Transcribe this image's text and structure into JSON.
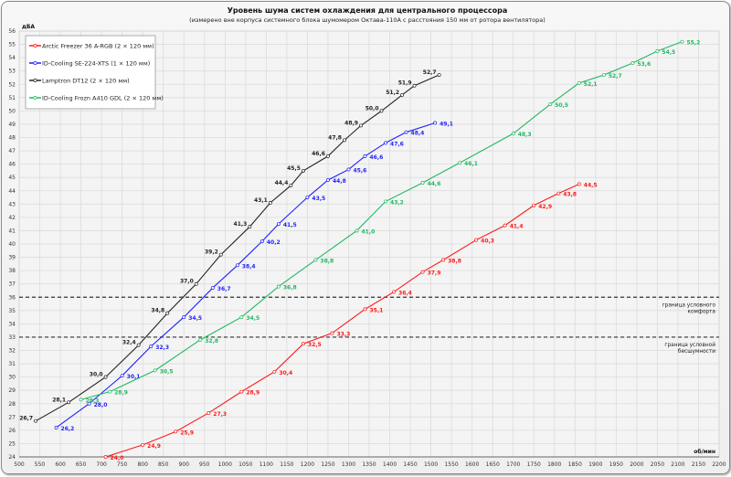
{
  "chart_data": {
    "type": "line",
    "title": "Уровень шума систем охлаждения для центрального процессора",
    "subtitle": "(измерено вне корпуса системного блока шумомером Октава-110А с расстояния 150 мм от ротора вентилятора)",
    "xlabel": "об/мин",
    "ylabel": "дБА",
    "xlim": [
      500,
      2200
    ],
    "ylim": [
      24,
      56
    ],
    "xticks": [
      500,
      550,
      600,
      650,
      700,
      750,
      800,
      850,
      900,
      950,
      1000,
      1050,
      1100,
      1150,
      1200,
      1250,
      1300,
      1350,
      1400,
      1450,
      1500,
      1550,
      1600,
      1650,
      1700,
      1750,
      1800,
      1850,
      1900,
      1950,
      2000,
      2050,
      2100,
      2150,
      2200
    ],
    "yticks": [
      24,
      25,
      26,
      27,
      28,
      29,
      30,
      31,
      32,
      33,
      34,
      35,
      36,
      37,
      38,
      39,
      40,
      41,
      42,
      43,
      44,
      45,
      46,
      47,
      48,
      49,
      50,
      51,
      52,
      53,
      54,
      55,
      56
    ],
    "grid": true,
    "legend": "top-left",
    "reference_lines": [
      {
        "y": 36,
        "label_line1": "граница  условного",
        "label_line2": "комфорта"
      },
      {
        "y": 33,
        "label_line1": "граница  условной",
        "label_line2": "бесшумности"
      }
    ],
    "series": [
      {
        "name": "Arctic Freezer 36 A-RGB (2 × 120 мм)",
        "color": "#ff1a1a",
        "label_side": "right",
        "x": [
          710,
          800,
          880,
          960,
          1040,
          1120,
          1190,
          1260,
          1340,
          1410,
          1480,
          1530,
          1610,
          1680,
          1750,
          1810,
          1860
        ],
        "y": [
          24.0,
          24.9,
          25.9,
          27.3,
          28.9,
          30.4,
          32.5,
          33.3,
          35.1,
          36.4,
          37.9,
          38.8,
          40.3,
          41.4,
          42.9,
          43.8,
          44.5
        ]
      },
      {
        "name": "ID-Cooling SE-224-XTS (1 × 120 мм)",
        "color": "#1f1fff",
        "label_side": "right",
        "x": [
          590,
          670,
          750,
          820,
          900,
          970,
          1030,
          1090,
          1130,
          1200,
          1250,
          1300,
          1340,
          1390,
          1440,
          1510
        ],
        "y": [
          26.2,
          28.0,
          30.1,
          32.3,
          34.5,
          36.7,
          38.4,
          40.2,
          41.5,
          43.5,
          44.8,
          45.6,
          46.6,
          47.6,
          48.4,
          49.1
        ]
      },
      {
        "name": "Lamptron DT12 (2 × 120 мм)",
        "color": "#222222",
        "label_side": "left",
        "x": [
          540,
          620,
          710,
          790,
          860,
          930,
          990,
          1060,
          1110,
          1160,
          1190,
          1250,
          1290,
          1330,
          1380,
          1430,
          1460,
          1520
        ],
        "y": [
          26.7,
          28.1,
          30.0,
          32.4,
          34.8,
          37.0,
          39.2,
          41.3,
          43.1,
          44.4,
          45.5,
          46.6,
          47.8,
          48.9,
          50.0,
          51.2,
          51.9,
          52.7
        ]
      },
      {
        "name": "ID-Cooling Frozn A410 GDL (2 × 120 мм)",
        "color": "#22b863",
        "label_side": "right",
        "x": [
          650,
          720,
          830,
          940,
          1040,
          1130,
          1220,
          1320,
          1390,
          1480,
          1570,
          1700,
          1790,
          1860,
          1920,
          1990,
          2050,
          2110
        ],
        "y": [
          28.3,
          28.9,
          30.5,
          32.8,
          34.5,
          36.8,
          38.8,
          41.0,
          43.2,
          44.6,
          46.1,
          48.3,
          50.5,
          52.1,
          52.7,
          53.6,
          54.5,
          55.2
        ]
      }
    ]
  }
}
